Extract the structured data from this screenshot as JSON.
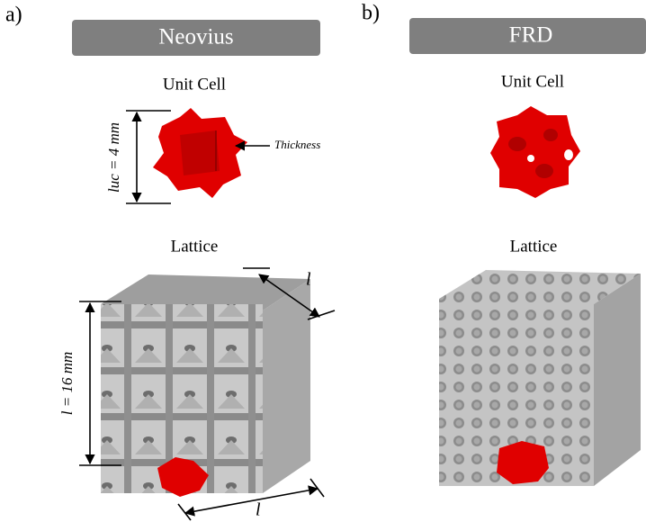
{
  "panels": [
    {
      "label": "a)",
      "title": "Neovius",
      "unit_cell": {
        "heading": "Unit Cell",
        "size_label": "luc = 4 mm",
        "thickness_label": "Thickness"
      },
      "lattice": {
        "heading": "Lattice",
        "depth_label": "l",
        "height_label": "l = 16 mm",
        "width_label": "l"
      }
    },
    {
      "label": "b)",
      "title": "FRD",
      "unit_cell": {
        "heading": "Unit Cell"
      },
      "lattice": {
        "heading": "Lattice"
      }
    }
  ]
}
